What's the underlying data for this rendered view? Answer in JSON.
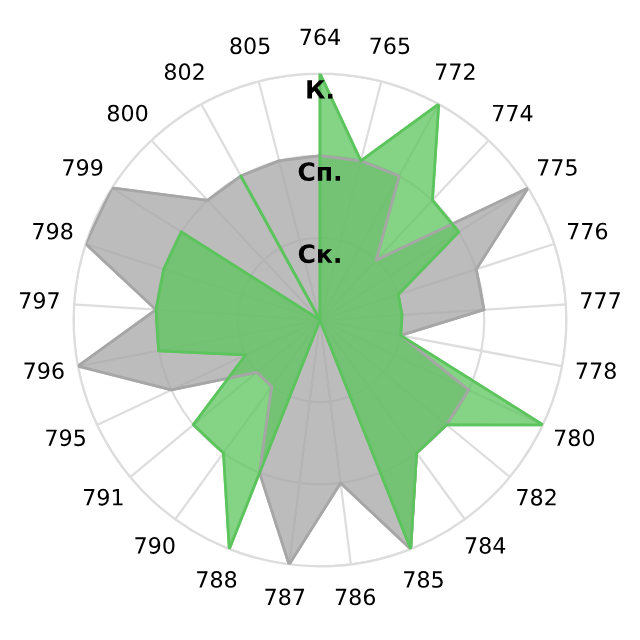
{
  "chart_data": {
    "type": "radar",
    "categories": [
      "764",
      "765",
      "772",
      "774",
      "775",
      "776",
      "777",
      "778",
      "780",
      "782",
      "784",
      "785",
      "786",
      "787",
      "788",
      "790",
      "791",
      "795",
      "796",
      "797",
      "798",
      "799",
      "800",
      "802",
      "805"
    ],
    "series": [
      {
        "color": "#a6a6a6",
        "values": [
          2,
          2,
          2,
          1,
          3,
          2,
          2,
          1,
          2,
          2,
          2,
          3,
          2,
          3,
          2,
          1,
          1,
          2,
          3,
          2,
          3,
          3,
          2,
          2,
          2
        ]
      },
      {
        "color": "#5cc45c",
        "values": [
          3,
          2,
          3,
          2,
          2,
          1,
          1,
          1,
          3,
          2,
          2,
          3,
          0,
          0,
          3,
          2,
          2,
          1,
          2,
          2,
          2,
          2,
          0,
          2,
          0
        ]
      }
    ],
    "ylim": [
      0,
      3
    ],
    "yticks": [
      {
        "value": 1,
        "label": "Ск."
      },
      {
        "value": 2,
        "label": "Сп."
      },
      {
        "value": 3,
        "label": "К."
      }
    ],
    "grid": true
  }
}
